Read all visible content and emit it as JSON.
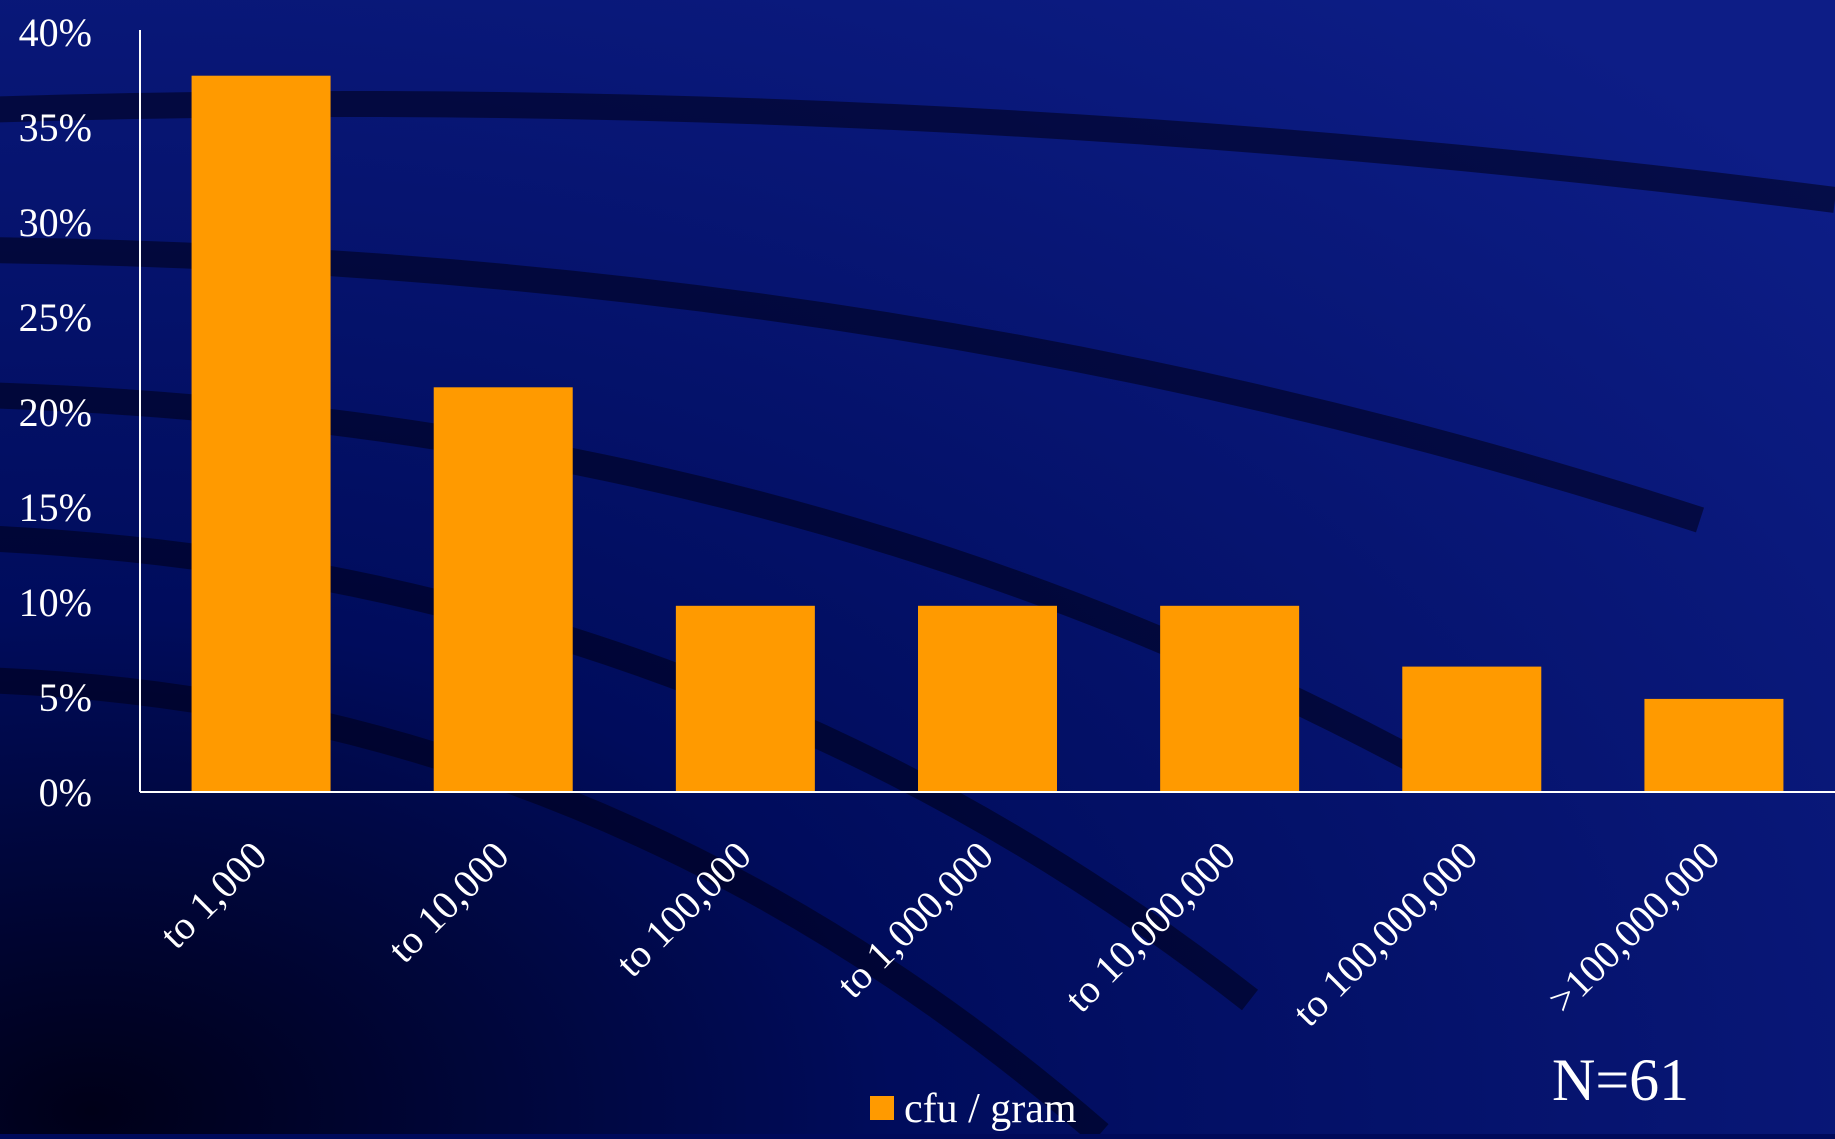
{
  "chart_data": {
    "type": "bar",
    "categories": [
      "to 1,000",
      "to 10,000",
      "to 100,000",
      "to 1,000,000",
      "to 10,000,000",
      "to 100,000,000",
      ">100,000,000"
    ],
    "series": [
      {
        "name": "cfu / gram",
        "values": [
          37.7,
          21.3,
          9.8,
          9.8,
          9.8,
          6.6,
          4.9
        ]
      }
    ],
    "yticks": [
      "0%",
      "5%",
      "10%",
      "15%",
      "20%",
      "25%",
      "30%",
      "35%",
      "40%"
    ],
    "ylim": [
      0,
      40
    ],
    "grid": false,
    "legend_position": "bottom-center",
    "annotation": "N=61",
    "colors": {
      "bar": "#ff9a00",
      "text": "#ffffff",
      "axis": "#ffffff",
      "background_top": "#000a5a",
      "background_bottom": "#101f7a"
    }
  }
}
